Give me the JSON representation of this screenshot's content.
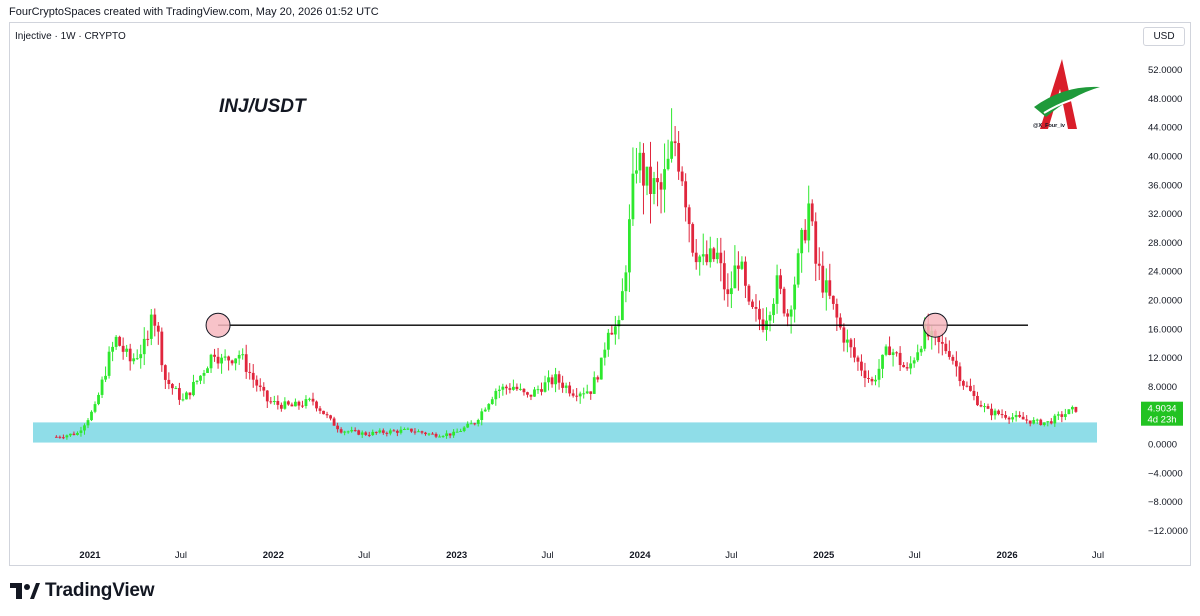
{
  "header": {
    "caption": "FourCryptoSpaces created with TradingView.com, May 20, 2026 01:52 UTC",
    "symbol_line": "Injective · 1W · CRYPTO",
    "currency": "USD"
  },
  "overlay": {
    "pair_title": "INJ/USDT",
    "watermark_handle": "@X_Four_iv"
  },
  "footer": {
    "brand": "TradingView"
  },
  "colors": {
    "up": "#2ee82e",
    "down": "#e0263d",
    "support_zone": "#8fdde8",
    "resistance_line": "#000000",
    "marker_fill": "#f7b8bf",
    "price_badge": "#22c322"
  },
  "chart_data": {
    "type": "candlestick",
    "timeframe": "1W",
    "ylim": [
      -13,
      55
    ],
    "y_ticks": [
      52,
      48,
      44,
      40,
      36,
      32,
      28,
      24,
      20,
      16,
      12,
      8,
      4,
      0,
      -4,
      -8,
      -12
    ],
    "y_tick_labels": [
      "52.0000",
      "48.0000",
      "44.0000",
      "40.0000",
      "36.0000",
      "32.0000",
      "28.0000",
      "24.0000",
      "20.0000",
      "16.0000",
      "12.0000",
      "8.0000",
      "4.0000",
      "0.0000",
      "−4.0000",
      "−8.0000",
      "−12.0000"
    ],
    "x_ticks": [
      {
        "label": "2021",
        "date": "2021-01-01",
        "bold": true
      },
      {
        "label": "Jul",
        "date": "2021-07-01",
        "bold": false
      },
      {
        "label": "2022",
        "date": "2022-01-01",
        "bold": true
      },
      {
        "label": "Jul",
        "date": "2022-07-01",
        "bold": false
      },
      {
        "label": "2023",
        "date": "2023-01-01",
        "bold": true
      },
      {
        "label": "Jul",
        "date": "2023-07-01",
        "bold": false
      },
      {
        "label": "2024",
        "date": "2024-01-01",
        "bold": true
      },
      {
        "label": "Jul",
        "date": "2024-07-01",
        "bold": false
      },
      {
        "label": "2025",
        "date": "2025-01-01",
        "bold": true
      },
      {
        "label": "Jul",
        "date": "2025-07-01",
        "bold": false
      },
      {
        "label": "2026",
        "date": "2026-01-01",
        "bold": true
      },
      {
        "label": "Jul",
        "date": "2026-07-01",
        "bold": false
      }
    ],
    "path": [
      {
        "date": "2020-10-26",
        "close": 1.0
      },
      {
        "date": "2020-12-07",
        "close": 1.5
      },
      {
        "date": "2021-01-11",
        "close": 5.0
      },
      {
        "date": "2021-02-08",
        "close": 12.0
      },
      {
        "date": "2021-02-22",
        "close": 14.5
      },
      {
        "date": "2021-03-22",
        "close": 11.5
      },
      {
        "date": "2021-04-26",
        "close": 14.0
      },
      {
        "date": "2021-05-03",
        "close": 19.5
      },
      {
        "date": "2021-05-17",
        "close": 15.0
      },
      {
        "date": "2021-05-31",
        "close": 9.0
      },
      {
        "date": "2021-07-05",
        "close": 6.0
      },
      {
        "date": "2021-08-09",
        "close": 9.5
      },
      {
        "date": "2021-09-06",
        "close": 13.0
      },
      {
        "date": "2021-09-20",
        "close": 11.5
      },
      {
        "date": "2021-10-25",
        "close": 12.5
      },
      {
        "date": "2021-11-22",
        "close": 9.0
      },
      {
        "date": "2021-12-20",
        "close": 6.0
      },
      {
        "date": "2022-01-10",
        "close": 5.5
      },
      {
        "date": "2022-02-07",
        "close": 5.2
      },
      {
        "date": "2022-03-21",
        "close": 6.0
      },
      {
        "date": "2022-04-25",
        "close": 3.2
      },
      {
        "date": "2022-05-16",
        "close": 1.9
      },
      {
        "date": "2022-07-04",
        "close": 1.4
      },
      {
        "date": "2022-08-15",
        "close": 1.7
      },
      {
        "date": "2022-10-03",
        "close": 1.9
      },
      {
        "date": "2022-11-14",
        "close": 1.3
      },
      {
        "date": "2022-12-26",
        "close": 1.4
      },
      {
        "date": "2023-02-06",
        "close": 3.0
      },
      {
        "date": "2023-03-20",
        "close": 7.5
      },
      {
        "date": "2023-04-24",
        "close": 8.0
      },
      {
        "date": "2023-05-22",
        "close": 6.5
      },
      {
        "date": "2023-06-19",
        "close": 8.0
      },
      {
        "date": "2023-07-17",
        "close": 9.0
      },
      {
        "date": "2023-08-21",
        "close": 7.3
      },
      {
        "date": "2023-09-25",
        "close": 7.5
      },
      {
        "date": "2023-10-16",
        "close": 11.0
      },
      {
        "date": "2023-10-30",
        "close": 16.5
      },
      {
        "date": "2023-11-20",
        "close": 16.0
      },
      {
        "date": "2023-12-11",
        "close": 30.0
      },
      {
        "date": "2023-12-25",
        "close": 40.0
      },
      {
        "date": "2024-01-15",
        "close": 36.0
      },
      {
        "date": "2024-02-12",
        "close": 35.0
      },
      {
        "date": "2024-03-11",
        "close": 42.0
      },
      {
        "date": "2024-03-25",
        "close": 38.0
      },
      {
        "date": "2024-04-15",
        "close": 28.0
      },
      {
        "date": "2024-05-06",
        "close": 25.0
      },
      {
        "date": "2024-06-03",
        "close": 26.0
      },
      {
        "date": "2024-06-24",
        "close": 20.0
      },
      {
        "date": "2024-07-15",
        "close": 26.0
      },
      {
        "date": "2024-08-05",
        "close": 18.5
      },
      {
        "date": "2024-09-02",
        "close": 17.0
      },
      {
        "date": "2024-09-30",
        "close": 22.0
      },
      {
        "date": "2024-10-21",
        "close": 18.0
      },
      {
        "date": "2024-11-11",
        "close": 25.0
      },
      {
        "date": "2024-12-02",
        "close": 33.0
      },
      {
        "date": "2024-12-16",
        "close": 25.0
      },
      {
        "date": "2025-01-13",
        "close": 20.0
      },
      {
        "date": "2025-02-03",
        "close": 16.0
      },
      {
        "date": "2025-03-03",
        "close": 12.0
      },
      {
        "date": "2025-04-07",
        "close": 8.5
      },
      {
        "date": "2025-05-12",
        "close": 13.5
      },
      {
        "date": "2025-06-16",
        "close": 10.0
      },
      {
        "date": "2025-07-21",
        "close": 15.5
      },
      {
        "date": "2025-08-11",
        "close": 14.0
      },
      {
        "date": "2025-09-08",
        "close": 13.0
      },
      {
        "date": "2025-10-06",
        "close": 8.5
      },
      {
        "date": "2025-10-27",
        "close": 6.5
      },
      {
        "date": "2025-11-24",
        "close": 4.5
      },
      {
        "date": "2025-12-29",
        "close": 4.0
      },
      {
        "date": "2026-01-26",
        "close": 3.5
      },
      {
        "date": "2026-03-02",
        "close": 3.0
      },
      {
        "date": "2026-03-23",
        "close": 3.0
      },
      {
        "date": "2026-04-20",
        "close": 4.0
      },
      {
        "date": "2026-05-18",
        "close": 4.9034
      }
    ],
    "last_price": {
      "value": 4.9034,
      "label": "4.9034",
      "countdown": "4d 23h"
    },
    "support_zone": {
      "low": 0.2,
      "high": 3.0,
      "from": "2020-10-26",
      "to": "2026-06-29"
    },
    "resistance_line": {
      "value": 16.5,
      "from": "2021-09-13",
      "to": "2026-05-18"
    },
    "markers": [
      {
        "date": "2021-09-13",
        "value": 16.5
      },
      {
        "date": "2025-08-11",
        "value": 16.5
      }
    ],
    "grid": false
  }
}
